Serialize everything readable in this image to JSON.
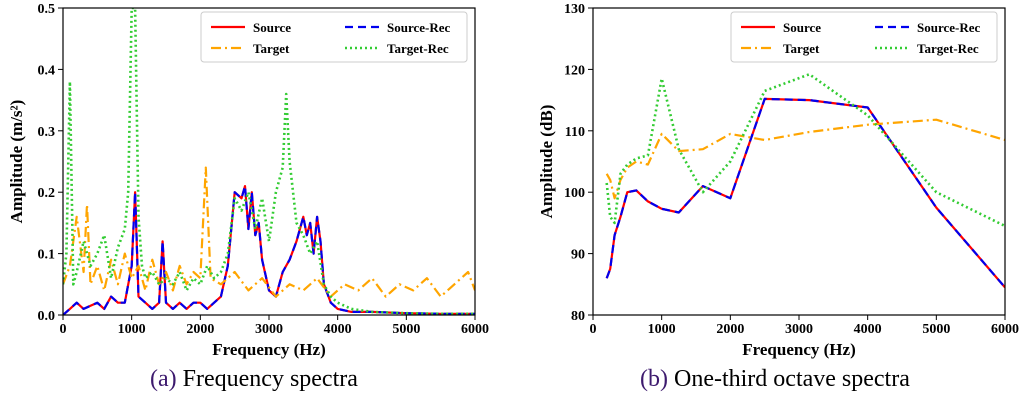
{
  "colors": {
    "source": "#ff0000",
    "source_rec": "#0000ee",
    "target": "#ffa500",
    "target_rec": "#33cc33"
  },
  "captions": [
    {
      "letter": "(a)",
      "text": "Frequency spectra"
    },
    {
      "letter": "(b)",
      "text": "One-third octave spectra"
    }
  ],
  "chart_data": [
    {
      "type": "line",
      "xlabel": "Frequency (Hz)",
      "ylabel": "Amplitude (m/s²)",
      "xlim": [
        0,
        6000
      ],
      "ylim": [
        0,
        0.5
      ],
      "xticks": [
        "0",
        "1000",
        "2000",
        "3000",
        "4000",
        "5000",
        "6000"
      ],
      "yticks": [
        "0.0",
        "0.1",
        "0.2",
        "0.3",
        "0.4",
        "0.5"
      ],
      "grid": false,
      "legend_position": "top-right",
      "series": [
        {
          "name": "Source",
          "style": "solid",
          "x": [
            0,
            100,
            200,
            300,
            400,
            500,
            600,
            700,
            800,
            900,
            1000,
            1050,
            1100,
            1200,
            1300,
            1400,
            1450,
            1500,
            1600,
            1700,
            1800,
            1900,
            2000,
            2100,
            2200,
            2300,
            2400,
            2500,
            2600,
            2650,
            2700,
            2750,
            2800,
            2850,
            2900,
            3000,
            3100,
            3200,
            3300,
            3400,
            3500,
            3550,
            3600,
            3650,
            3700,
            3750,
            3800,
            3900,
            4000,
            4200,
            4500,
            5000,
            5500,
            6000
          ],
          "y": [
            0.0,
            0.01,
            0.02,
            0.01,
            0.015,
            0.02,
            0.01,
            0.03,
            0.02,
            0.02,
            0.08,
            0.2,
            0.03,
            0.02,
            0.01,
            0.02,
            0.12,
            0.02,
            0.01,
            0.02,
            0.01,
            0.02,
            0.02,
            0.01,
            0.02,
            0.03,
            0.08,
            0.2,
            0.19,
            0.21,
            0.14,
            0.2,
            0.13,
            0.15,
            0.09,
            0.04,
            0.03,
            0.07,
            0.09,
            0.12,
            0.16,
            0.13,
            0.15,
            0.1,
            0.16,
            0.12,
            0.05,
            0.02,
            0.01,
            0.005,
            0.005,
            0.003,
            0.002,
            0.002
          ]
        },
        {
          "name": "Source-Rec",
          "style": "dashed",
          "x": [
            0,
            100,
            200,
            300,
            400,
            500,
            600,
            700,
            800,
            900,
            1000,
            1050,
            1100,
            1200,
            1300,
            1400,
            1450,
            1500,
            1600,
            1700,
            1800,
            1900,
            2000,
            2100,
            2200,
            2300,
            2400,
            2500,
            2600,
            2650,
            2700,
            2750,
            2800,
            2850,
            2900,
            3000,
            3100,
            3200,
            3300,
            3400,
            3500,
            3550,
            3600,
            3650,
            3700,
            3750,
            3800,
            3900,
            4000,
            4200,
            4500,
            5000,
            5500,
            6000
          ],
          "y": [
            0.0,
            0.01,
            0.02,
            0.01,
            0.015,
            0.02,
            0.01,
            0.03,
            0.02,
            0.02,
            0.08,
            0.2,
            0.03,
            0.02,
            0.01,
            0.02,
            0.12,
            0.02,
            0.01,
            0.02,
            0.01,
            0.02,
            0.02,
            0.01,
            0.02,
            0.03,
            0.08,
            0.2,
            0.19,
            0.21,
            0.14,
            0.2,
            0.13,
            0.15,
            0.09,
            0.04,
            0.03,
            0.07,
            0.09,
            0.12,
            0.16,
            0.13,
            0.15,
            0.1,
            0.16,
            0.12,
            0.05,
            0.02,
            0.01,
            0.005,
            0.005,
            0.003,
            0.002,
            0.002
          ]
        },
        {
          "name": "Target",
          "style": "dashdot",
          "x": [
            0,
            100,
            200,
            300,
            350,
            400,
            500,
            600,
            700,
            800,
            900,
            1000,
            1100,
            1200,
            1300,
            1400,
            1500,
            1600,
            1700,
            1800,
            1900,
            2000,
            2080,
            2150,
            2300,
            2500,
            2700,
            2900,
            3100,
            3300,
            3500,
            3700,
            3900,
            4100,
            4300,
            4500,
            4700,
            4900,
            5100,
            5300,
            5500,
            5700,
            5900,
            6000
          ],
          "y": [
            0.05,
            0.08,
            0.16,
            0.07,
            0.18,
            0.05,
            0.08,
            0.04,
            0.09,
            0.05,
            0.1,
            0.06,
            0.08,
            0.04,
            0.09,
            0.05,
            0.07,
            0.04,
            0.08,
            0.05,
            0.07,
            0.06,
            0.24,
            0.06,
            0.05,
            0.07,
            0.04,
            0.06,
            0.03,
            0.05,
            0.04,
            0.06,
            0.03,
            0.05,
            0.04,
            0.06,
            0.03,
            0.05,
            0.04,
            0.06,
            0.03,
            0.05,
            0.07,
            0.04
          ]
        },
        {
          "name": "Target-Rec",
          "style": "dotted",
          "x": [
            0,
            50,
            100,
            150,
            200,
            300,
            400,
            500,
            600,
            700,
            800,
            900,
            950,
            1000,
            1050,
            1100,
            1150,
            1200,
            1300,
            1400,
            1500,
            1600,
            1700,
            1800,
            1900,
            2000,
            2100,
            2200,
            2300,
            2400,
            2500,
            2600,
            2700,
            2800,
            2900,
            3000,
            3100,
            3200,
            3250,
            3300,
            3400,
            3500,
            3600,
            3700,
            3800,
            3900,
            4000,
            4200,
            4500,
            5000,
            5500,
            6000
          ],
          "y": [
            0.05,
            0.1,
            0.38,
            0.05,
            0.07,
            0.12,
            0.08,
            0.1,
            0.13,
            0.06,
            0.11,
            0.14,
            0.2,
            0.5,
            0.5,
            0.16,
            0.08,
            0.06,
            0.07,
            0.05,
            0.06,
            0.05,
            0.07,
            0.04,
            0.06,
            0.05,
            0.08,
            0.06,
            0.07,
            0.1,
            0.19,
            0.17,
            0.2,
            0.14,
            0.19,
            0.12,
            0.2,
            0.24,
            0.36,
            0.25,
            0.15,
            0.13,
            0.1,
            0.12,
            0.05,
            0.03,
            0.02,
            0.01,
            0.005,
            0.003,
            0.002,
            0.002
          ]
        }
      ]
    },
    {
      "type": "line",
      "xlabel": "Frequency (Hz)",
      "ylabel": "Amplitude (dB)",
      "xlim": [
        0,
        6000
      ],
      "ylim": [
        80,
        130
      ],
      "xticks": [
        "0",
        "1000",
        "2000",
        "3000",
        "4000",
        "5000",
        "6000"
      ],
      "yticks": [
        "80",
        "90",
        "100",
        "110",
        "120",
        "130"
      ],
      "grid": false,
      "legend_position": "top-right",
      "series": [
        {
          "name": "Source",
          "style": "solid",
          "x": [
            200,
            250,
            315,
            400,
            500,
            630,
            800,
            1000,
            1250,
            1600,
            2000,
            2500,
            3150,
            4000,
            5000,
            6000
          ],
          "y": [
            86.0,
            87.5,
            93.0,
            96.0,
            100.0,
            100.3,
            98.5,
            97.3,
            96.7,
            101.0,
            99.0,
            115.2,
            115.0,
            113.8,
            97.5,
            84.5
          ]
        },
        {
          "name": "Source-Rec",
          "style": "dashed",
          "x": [
            200,
            250,
            315,
            400,
            500,
            630,
            800,
            1000,
            1250,
            1600,
            2000,
            2500,
            3150,
            4000,
            5000,
            6000
          ],
          "y": [
            86.0,
            87.5,
            93.0,
            96.0,
            100.0,
            100.3,
            98.5,
            97.3,
            96.7,
            101.0,
            99.0,
            115.2,
            115.0,
            113.8,
            97.5,
            84.5
          ]
        },
        {
          "name": "Target",
          "style": "dashdot",
          "x": [
            200,
            250,
            315,
            400,
            500,
            630,
            800,
            1000,
            1250,
            1600,
            2000,
            2500,
            3150,
            4000,
            5000,
            6000
          ],
          "y": [
            103.0,
            102.0,
            99.0,
            102.0,
            104.0,
            105.0,
            104.5,
            109.5,
            106.7,
            107.0,
            109.5,
            108.5,
            109.8,
            111.0,
            111.8,
            108.5
          ]
        },
        {
          "name": "Target-Rec",
          "style": "dotted",
          "x": [
            200,
            250,
            315,
            400,
            500,
            630,
            800,
            1000,
            1250,
            1600,
            2000,
            2500,
            3150,
            4000,
            5000,
            6000
          ],
          "y": [
            101.5,
            96.0,
            95.0,
            103.0,
            104.5,
            105.5,
            106.0,
            118.5,
            107.0,
            100.0,
            105.0,
            116.5,
            119.2,
            112.5,
            100.0,
            94.5
          ]
        }
      ]
    }
  ]
}
